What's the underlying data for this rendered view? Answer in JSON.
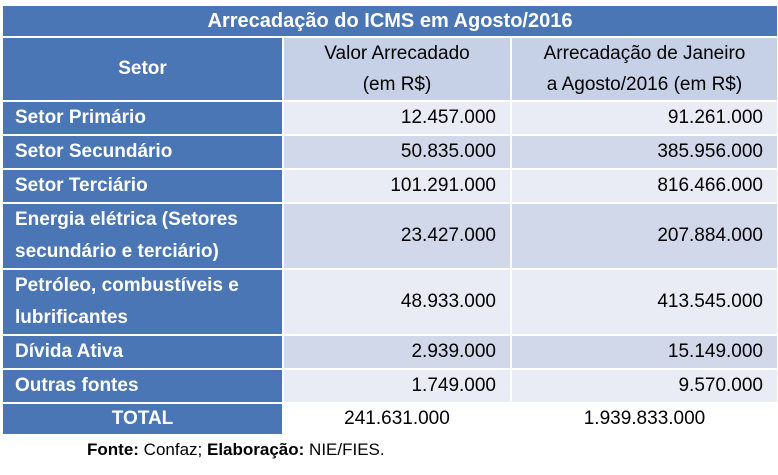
{
  "table": {
    "title": "Arrecadação do ICMS em Agosto/2016",
    "headers": {
      "sector": "Setor",
      "value_line1": "Valor Arrecadado",
      "value_line2": "(em R$)",
      "ytd_line1": "Arrecadação de Janeiro",
      "ytd_line2": "a Agosto/2016 (em R$)"
    },
    "rows": [
      {
        "label_line1": "Setor Primário",
        "label_line2": "",
        "value": "12.457.000",
        "ytd": "91.261.000"
      },
      {
        "label_line1": "Setor Secundário",
        "label_line2": "",
        "value": "50.835.000",
        "ytd": "385.956.000"
      },
      {
        "label_line1": "Setor Terciário",
        "label_line2": "",
        "value": "101.291.000",
        "ytd": "816.466.000"
      },
      {
        "label_line1": "Energia elétrica (Setores",
        "label_line2": "secundário  e terciário)",
        "value": "23.427.000",
        "ytd": "207.884.000"
      },
      {
        "label_line1": "Petróleo, combustíveis e",
        "label_line2": "lubrificantes",
        "value": "48.933.000",
        "ytd": "413.545.000"
      },
      {
        "label_line1": "Dívida Ativa",
        "label_line2": "",
        "value": "2.939.000",
        "ytd": "15.149.000"
      },
      {
        "label_line1": "Outras fontes",
        "label_line2": "",
        "value": "1.749.000",
        "ytd": "9.570.000"
      }
    ],
    "total": {
      "label": "TOTAL",
      "value": "241.631.000",
      "ytd": "1.939.833.000"
    }
  },
  "source": {
    "fonte_label": "Fonte:",
    "fonte_value": "Confaz;",
    "elab_label": "Elaboração:",
    "elab_value": "NIE/FIES."
  },
  "colors": {
    "header_blue": "#4a76b5",
    "light_row": "#e9ecf4",
    "dark_row": "#d0d8e9",
    "column_header": "#c6d0e6"
  }
}
